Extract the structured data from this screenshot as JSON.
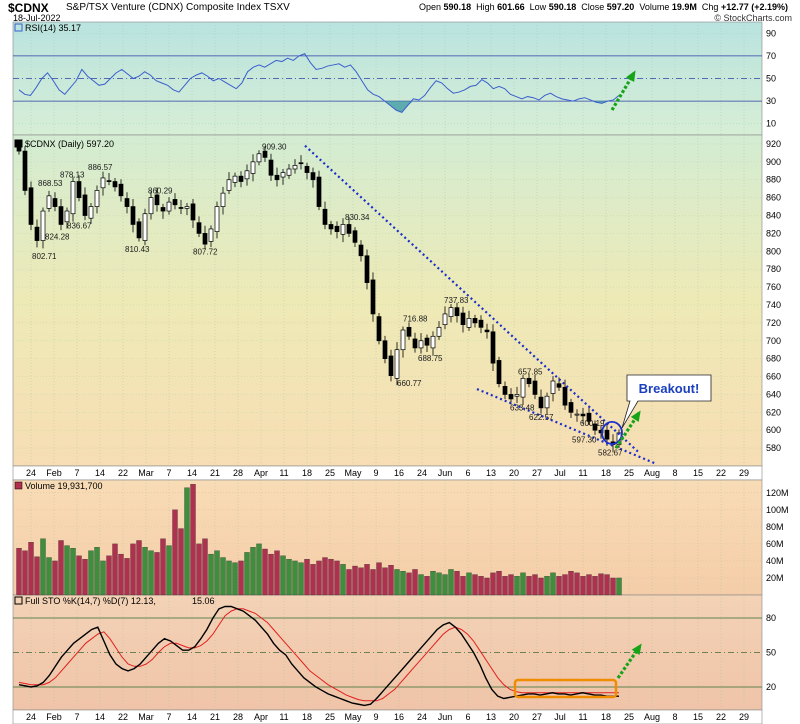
{
  "header": {
    "symbol": "$CDNX",
    "name": "S&P/TSX Venture (CDNX) Composite Index TSXV",
    "date": "18-Jul-2022",
    "watermark": "© StockCharts.com",
    "quote": {
      "open_label": "Open",
      "open": "590.18",
      "high_label": "High",
      "high": "601.66",
      "low_label": "Low",
      "low": "590.18",
      "close_label": "Close",
      "close": "597.20",
      "volume_label": "Volume",
      "volume": "19.9M",
      "chg_label": "Chg",
      "chg": "+12.77 (+2.19%)"
    }
  },
  "colors": {
    "up": "#1e8a1e",
    "down": "#c8102e",
    "vol_up": "#3d8f3d",
    "vol_down": "#b03050",
    "rsi_line": "#3a5fcd",
    "trend": "#1a2ecc",
    "arrow": "#17a317",
    "sto_k": "#000000",
    "sto_d": "#e02020",
    "highlight": "#f08c00"
  },
  "chart_data": [
    {
      "type": "line",
      "panel": "rsi",
      "legend": "RSI(14) 35.17",
      "ylim": [
        0,
        100
      ],
      "yticks": [
        10,
        30,
        50,
        70,
        90
      ],
      "levels": [
        30,
        50,
        70
      ],
      "values": [
        40,
        36,
        35,
        42,
        50,
        55,
        48,
        40,
        36,
        42,
        48,
        58,
        52,
        48,
        44,
        45,
        50,
        55,
        58,
        54,
        50,
        52,
        56,
        53,
        48,
        46,
        44,
        40,
        38,
        44,
        50,
        53,
        55,
        52,
        48,
        50,
        47,
        44,
        41,
        46,
        56,
        60,
        62,
        60,
        63,
        66,
        65,
        68,
        66,
        70,
        72,
        64,
        58,
        59,
        61,
        62,
        63,
        60,
        62,
        56,
        48,
        40,
        36,
        34,
        30,
        26,
        22,
        20,
        26,
        32,
        31,
        35,
        42,
        48,
        46,
        41,
        37,
        38,
        40,
        43,
        44,
        49,
        46,
        41,
        43,
        41,
        36,
        34,
        32,
        34,
        33,
        31,
        35,
        37,
        34,
        32,
        31,
        30,
        32,
        33,
        31,
        29,
        28,
        30,
        31,
        35
      ]
    },
    {
      "type": "candlestick",
      "panel": "price",
      "legend": "$CDNX (Daily) 597.20",
      "ylim": [
        560,
        930
      ],
      "yticks": [
        580,
        600,
        620,
        640,
        660,
        680,
        700,
        720,
        740,
        760,
        780,
        800,
        820,
        840,
        860,
        880,
        900,
        920
      ],
      "x_labels": [
        "24",
        "Feb",
        "7",
        "14",
        "22",
        "Mar",
        "7",
        "14",
        "21",
        "28",
        "Apr",
        "11",
        "18",
        "25",
        "May",
        "9",
        "16",
        "24",
        "Jun",
        "6",
        "13",
        "20",
        "27",
        "Jul",
        "11",
        "18",
        "25",
        "Aug",
        "8",
        "15",
        "22",
        "29"
      ],
      "closes": [
        912,
        868,
        830,
        812,
        845,
        862,
        850,
        830,
        845,
        878,
        860,
        840,
        850,
        868,
        882,
        878,
        872,
        862,
        850,
        830,
        815,
        842,
        860,
        852,
        845,
        855,
        852,
        848,
        850,
        835,
        820,
        808,
        825,
        850,
        865,
        880,
        884,
        878,
        890,
        900,
        909,
        905,
        885,
        880,
        888,
        892,
        896,
        898,
        888,
        880,
        850,
        830,
        825,
        822,
        830,
        820,
        810,
        795,
        765,
        730,
        700,
        680,
        661,
        690,
        712,
        705,
        692,
        700,
        695,
        705,
        715,
        730,
        737,
        728,
        718,
        725,
        720,
        715,
        710,
        675,
        652,
        640,
        635,
        640,
        658,
        652,
        640,
        625,
        638,
        655,
        648,
        628,
        620,
        618,
        616,
        610,
        600,
        597,
        590,
        584,
        597
      ],
      "annotations": [
        {
          "label": "802.71",
          "value": 802.71
        },
        {
          "label": "868.53",
          "value": 868.53
        },
        {
          "label": "824.28",
          "value": 824.28
        },
        {
          "label": "878.13",
          "value": 878.13
        },
        {
          "label": "836.67",
          "value": 836.67
        },
        {
          "label": "886.57",
          "value": 886.57
        },
        {
          "label": "810.43",
          "value": 810.43
        },
        {
          "label": "860.29",
          "value": 860.29
        },
        {
          "label": "807.72",
          "value": 807.72
        },
        {
          "label": "909.30",
          "value": 909.3
        },
        {
          "label": "830.34",
          "value": 830.34
        },
        {
          "label": "660.77",
          "value": 660.77
        },
        {
          "label": "716.88",
          "value": 716.88
        },
        {
          "label": "688.75",
          "value": 688.75
        },
        {
          "label": "737.83",
          "value": 737.83
        },
        {
          "label": "657.85",
          "value": 657.85
        },
        {
          "label": "633.48",
          "value": 633.48
        },
        {
          "label": "622.57",
          "value": 622.57
        },
        {
          "label": "600.19",
          "value": 600.19
        },
        {
          "label": "597.30",
          "value": 597.3
        },
        {
          "label": "582.67",
          "value": 582.67
        }
      ],
      "callout": "Breakout!"
    },
    {
      "type": "bar",
      "panel": "volume",
      "legend": "Volume 19,931,700",
      "ylim": [
        0,
        135
      ],
      "unit": "M",
      "yticks": [
        "20M",
        "40M",
        "60M",
        "80M",
        "100M",
        "120M"
      ],
      "ytick_values": [
        20,
        40,
        60,
        80,
        100,
        120
      ],
      "values": [
        55,
        52,
        62,
        45,
        66,
        44,
        40,
        64,
        58,
        55,
        46,
        42,
        52,
        56,
        40,
        46,
        60,
        48,
        43,
        60,
        64,
        56,
        52,
        50,
        66,
        58,
        100,
        78,
        126,
        130,
        60,
        66,
        48,
        52,
        44,
        40,
        38,
        40,
        50,
        56,
        60,
        54,
        48,
        52,
        46,
        42,
        40,
        38,
        42,
        36,
        40,
        44,
        42,
        40,
        36,
        30,
        34,
        32,
        36,
        30,
        38,
        32,
        35,
        30,
        28,
        26,
        30,
        24,
        22,
        28,
        26,
        24,
        30,
        28,
        22,
        26,
        24,
        22,
        20,
        26,
        28,
        22,
        24,
        22,
        26,
        22,
        24,
        20,
        22,
        26,
        22,
        24,
        28,
        26,
        22,
        24,
        22,
        25,
        24,
        20,
        20
      ]
    },
    {
      "type": "line",
      "panel": "stochastic",
      "legend": "Full STO %K(14,7) %D(7) 12.13, 15.06",
      "legend_k": "Full STO %K(14,7) %D(7) 12.13,",
      "legend_d": "15.06",
      "ylim": [
        0,
        100
      ],
      "yticks": [
        20,
        50,
        80
      ],
      "k_values": [
        22,
        21,
        20,
        21,
        24,
        30,
        38,
        46,
        52,
        58,
        62,
        66,
        70,
        72,
        60,
        48,
        40,
        36,
        34,
        36,
        40,
        46,
        52,
        58,
        62,
        60,
        56,
        52,
        52,
        55,
        62,
        70,
        80,
        88,
        90,
        90,
        88,
        86,
        82,
        78,
        72,
        66,
        58,
        52,
        48,
        40,
        34,
        28,
        24,
        20,
        17,
        14,
        12,
        10,
        8,
        6,
        5,
        4,
        5,
        10,
        16,
        22,
        28,
        34,
        40,
        46,
        52,
        58,
        64,
        70,
        74,
        76,
        72,
        66,
        58,
        50,
        40,
        28,
        18,
        12,
        10,
        11,
        12,
        13,
        14,
        14,
        13,
        14,
        15,
        14,
        14,
        13,
        14,
        15,
        14,
        13,
        13,
        12,
        12,
        12
      ],
      "d_values": [
        24,
        23,
        22,
        22,
        22,
        24,
        28,
        34,
        40,
        46,
        52,
        58,
        62,
        66,
        68,
        62,
        54,
        46,
        40,
        38,
        38,
        40,
        44,
        50,
        55,
        58,
        58,
        56,
        54,
        54,
        56,
        60,
        66,
        74,
        82,
        86,
        88,
        88,
        86,
        84,
        80,
        76,
        70,
        64,
        58,
        52,
        46,
        40,
        34,
        30,
        26,
        22,
        19,
        16,
        13,
        11,
        9,
        8,
        8,
        8,
        10,
        14,
        18,
        24,
        30,
        36,
        42,
        48,
        54,
        60,
        66,
        70,
        72,
        70,
        66,
        60,
        52,
        44,
        36,
        28,
        22,
        18,
        16,
        15,
        15,
        15,
        15,
        15,
        15,
        15,
        15,
        15,
        15,
        15,
        15,
        15,
        15,
        15,
        15,
        15
      ]
    }
  ]
}
